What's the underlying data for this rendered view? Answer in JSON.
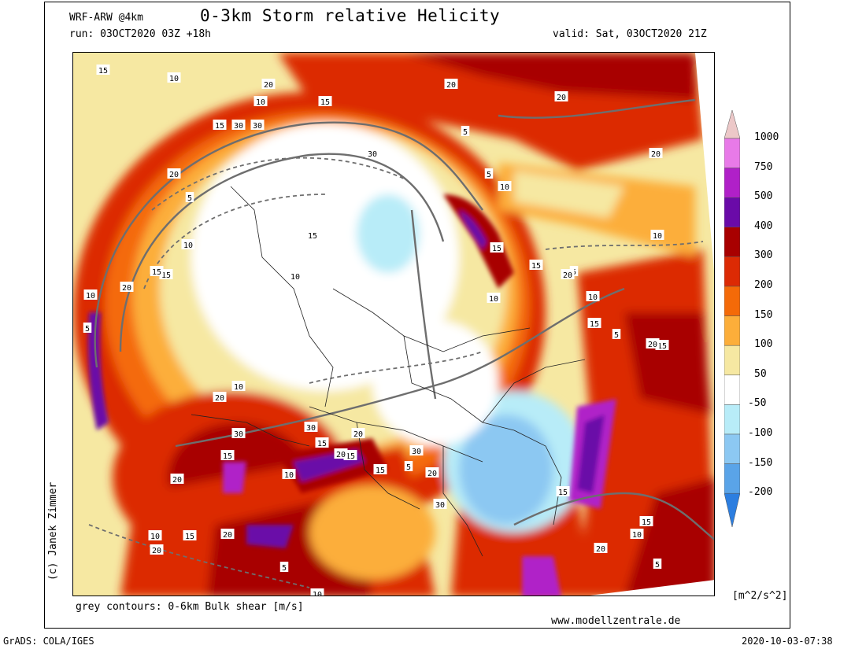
{
  "header": {
    "model": "WRF-ARW @4km",
    "title": "0-3km Storm relative Helicity",
    "run": "run: 03OCT2020 03Z +18h",
    "valid": "valid: Sat, 03OCT2020 21Z"
  },
  "footer": {
    "contour_note": "grey contours: 0-6km Bulk shear [m/s]",
    "website": "www.modellzentrale.de",
    "grads": "GrADS: COLA/IGES",
    "timestamp": "2020-10-03-07:38",
    "copyright": "(c) Janek Zimmer"
  },
  "colorbar": {
    "unit": "[m^2/s^2]",
    "levels": [
      {
        "label": "1000",
        "color": "#ecc8c8"
      },
      {
        "label": "750",
        "color": "#e87ae8"
      },
      {
        "label": "500",
        "color": "#b020c8"
      },
      {
        "label": "400",
        "color": "#6a0aa8"
      },
      {
        "label": "300",
        "color": "#a80000"
      },
      {
        "label": "200",
        "color": "#dc2a04"
      },
      {
        "label": "150",
        "color": "#f46a08"
      },
      {
        "label": "100",
        "color": "#fcae3a"
      },
      {
        "label": "50",
        "color": "#f6e8a2"
      },
      {
        "label": "-50",
        "color": "#ffffff"
      },
      {
        "label": "-100",
        "color": "#b8ecf8"
      },
      {
        "label": "-150",
        "color": "#8cc8f2"
      },
      {
        "label": "-200",
        "color": "#5aa4e8"
      }
    ],
    "bottom_color": "#2c7ee0"
  },
  "contour_labels": [
    {
      "v": "15"
    },
    {
      "v": "10"
    },
    {
      "v": "20"
    },
    {
      "v": "20"
    },
    {
      "v": "15"
    },
    {
      "v": "20"
    },
    {
      "v": "30"
    },
    {
      "v": "15"
    },
    {
      "v": "10"
    },
    {
      "v": "30"
    },
    {
      "v": "5"
    },
    {
      "v": "20"
    },
    {
      "v": "5"
    },
    {
      "v": "15"
    },
    {
      "v": "10"
    },
    {
      "v": "15"
    },
    {
      "v": "10"
    },
    {
      "v": "20"
    },
    {
      "v": "15"
    },
    {
      "v": "10"
    },
    {
      "v": "5"
    },
    {
      "v": "30"
    },
    {
      "v": "20"
    },
    {
      "v": "5"
    },
    {
      "v": "10"
    },
    {
      "v": "15"
    },
    {
      "v": "5"
    },
    {
      "v": "10"
    },
    {
      "v": "15"
    },
    {
      "v": "20"
    },
    {
      "v": "10"
    },
    {
      "v": "15"
    },
    {
      "v": "10"
    },
    {
      "v": "5"
    },
    {
      "v": "15"
    },
    {
      "v": "20"
    },
    {
      "v": "10"
    },
    {
      "v": "30"
    },
    {
      "v": "15"
    },
    {
      "v": "20"
    },
    {
      "v": "20"
    },
    {
      "v": "30"
    },
    {
      "v": "15"
    },
    {
      "v": "20"
    },
    {
      "v": "15"
    },
    {
      "v": "20"
    },
    {
      "v": "10"
    },
    {
      "v": "15"
    },
    {
      "v": "5"
    },
    {
      "v": "20"
    },
    {
      "v": "30"
    },
    {
      "v": "30"
    },
    {
      "v": "15"
    },
    {
      "v": "10"
    },
    {
      "v": "15"
    },
    {
      "v": "20"
    },
    {
      "v": "5"
    },
    {
      "v": "10"
    },
    {
      "v": "20"
    },
    {
      "v": "15"
    },
    {
      "v": "20"
    },
    {
      "v": "5"
    },
    {
      "v": "10"
    }
  ]
}
